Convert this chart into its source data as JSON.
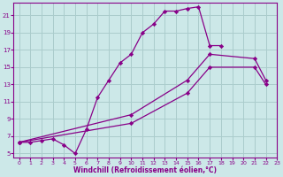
{
  "background_color": "#cce8e8",
  "grid_color": "#aacccc",
  "line_color": "#880088",
  "marker_color": "#880088",
  "xlabel": "Windchill (Refroidissement éolien,°C)",
  "ylabel_left_ticks": [
    5,
    7,
    9,
    11,
    13,
    15,
    17,
    19,
    21
  ],
  "xlim": [
    -0.5,
    23
  ],
  "ylim": [
    4.5,
    22.5
  ],
  "xticks": [
    0,
    1,
    2,
    3,
    4,
    5,
    6,
    7,
    8,
    9,
    10,
    11,
    12,
    13,
    14,
    15,
    16,
    17,
    18,
    19,
    20,
    21,
    22,
    23
  ],
  "line1_x": [
    0,
    1,
    2,
    3,
    4,
    5,
    6,
    7,
    8,
    9,
    10,
    11,
    12,
    13,
    14,
    15,
    16,
    17,
    18
  ],
  "line1_y": [
    6.3,
    6.3,
    6.5,
    6.7,
    6.0,
    5.0,
    7.8,
    11.5,
    13.5,
    15.5,
    16.5,
    19.0,
    20.0,
    21.5,
    21.5,
    21.8,
    22.0,
    17.5,
    17.5
  ],
  "line2_x": [
    0,
    10,
    15,
    17,
    21,
    22
  ],
  "line2_y": [
    6.3,
    9.5,
    13.5,
    16.5,
    16.0,
    13.5
  ],
  "line3_x": [
    0,
    10,
    15,
    17,
    21,
    22
  ],
  "line3_y": [
    6.3,
    8.5,
    12.0,
    15.0,
    15.0,
    13.0
  ]
}
